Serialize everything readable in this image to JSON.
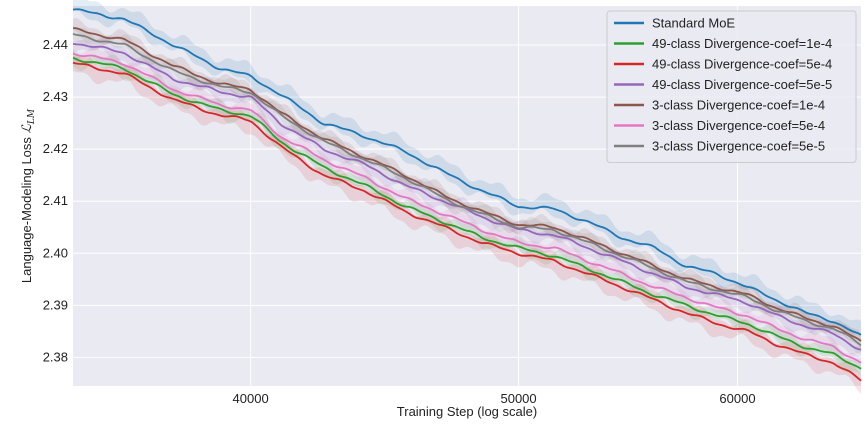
{
  "chart_data": {
    "type": "line",
    "title": "",
    "xlabel": "Training Step (log scale)",
    "ylabel_text": "Language-Modeling Loss ",
    "ylabel_symbol": "ℒ",
    "ylabel_subscript": "LM",
    "x_scale": "log",
    "xlim": [
      34500,
      66500
    ],
    "ylim": [
      2.3745,
      2.4475
    ],
    "x_ticks": [
      40000,
      50000,
      60000
    ],
    "x_tick_labels": [
      "40000",
      "50000",
      "60000"
    ],
    "y_ticks": [
      2.38,
      2.39,
      2.4,
      2.41,
      2.42,
      2.43,
      2.44
    ],
    "y_tick_labels": [
      "2.38",
      "2.39",
      "2.40",
      "2.41",
      "2.42",
      "2.43",
      "2.44"
    ],
    "grid": true,
    "legend_position": "top-right",
    "background": "#eaeaf2",
    "x": [
      34500,
      36000,
      37500,
      39000,
      40000,
      41000,
      42500,
      44000,
      45500,
      47000,
      48500,
      50000,
      51500,
      53000,
      54500,
      56000,
      57500,
      59000,
      60500,
      62000,
      63500,
      65000,
      66500
    ],
    "series": [
      {
        "name": "Standard MoE",
        "color": "#1f77b4",
        "values": [
          2.4468,
          2.445,
          2.44,
          2.4355,
          2.434,
          2.4305,
          2.425,
          2.4225,
          2.4195,
          2.4155,
          2.412,
          2.409,
          2.4085,
          2.406,
          2.403,
          2.401,
          2.3975,
          2.396,
          2.3935,
          2.391,
          2.3885,
          2.387,
          2.384
        ]
      },
      {
        "name": "49-class Divergence-coef=1e-4",
        "color": "#2ca02c",
        "values": [
          2.4375,
          2.4355,
          2.4305,
          2.4275,
          2.4265,
          2.4215,
          2.4165,
          2.413,
          2.409,
          2.406,
          2.403,
          2.401,
          2.3995,
          2.397,
          2.3945,
          2.392,
          2.39,
          2.388,
          2.3865,
          2.384,
          2.382,
          2.3805,
          2.378
        ]
      },
      {
        "name": "49-class Divergence-coef=5e-4",
        "color": "#d62728",
        "values": [
          2.4365,
          2.4345,
          2.4295,
          2.4265,
          2.4255,
          2.4205,
          2.415,
          2.412,
          2.408,
          2.405,
          2.402,
          2.4,
          2.3985,
          2.396,
          2.3935,
          2.391,
          2.3885,
          2.3865,
          2.385,
          2.3825,
          2.3805,
          2.379,
          2.3755
        ]
      },
      {
        "name": "49-class Divergence-coef=5e-5",
        "color": "#9467bd",
        "values": [
          2.4405,
          2.4385,
          2.4335,
          2.431,
          2.43,
          2.425,
          2.42,
          2.417,
          2.413,
          2.41,
          2.407,
          2.4045,
          2.4035,
          2.401,
          2.3985,
          2.396,
          2.3935,
          2.392,
          2.3905,
          2.388,
          2.386,
          2.3845,
          2.3815
        ]
      },
      {
        "name": "3-class Divergence-coef=1e-4",
        "color": "#8c564b",
        "values": [
          2.443,
          2.441,
          2.436,
          2.4325,
          2.4315,
          2.427,
          2.422,
          2.4185,
          2.415,
          2.411,
          2.408,
          2.4055,
          2.405,
          2.4025,
          2.4,
          2.3975,
          2.395,
          2.3935,
          2.392,
          2.3895,
          2.3875,
          2.386,
          2.383
        ]
      },
      {
        "name": "3-class Divergence-coef=5e-4",
        "color": "#e377c2",
        "values": [
          2.4385,
          2.4365,
          2.4315,
          2.4285,
          2.4275,
          2.4225,
          2.418,
          2.4145,
          2.4105,
          2.4075,
          2.4045,
          2.402,
          2.401,
          2.3985,
          2.396,
          2.3935,
          2.3915,
          2.3895,
          2.388,
          2.3855,
          2.3835,
          2.382,
          2.379
        ]
      },
      {
        "name": "3-class Divergence-coef=5e-5",
        "color": "#7f7f7f",
        "values": [
          2.442,
          2.44,
          2.435,
          2.432,
          2.431,
          2.4265,
          2.4215,
          2.418,
          2.4145,
          2.4105,
          2.4075,
          2.405,
          2.4045,
          2.402,
          2.3995,
          2.397,
          2.3945,
          2.393,
          2.3915,
          2.389,
          2.387,
          2.3855,
          2.3825
        ]
      }
    ]
  }
}
